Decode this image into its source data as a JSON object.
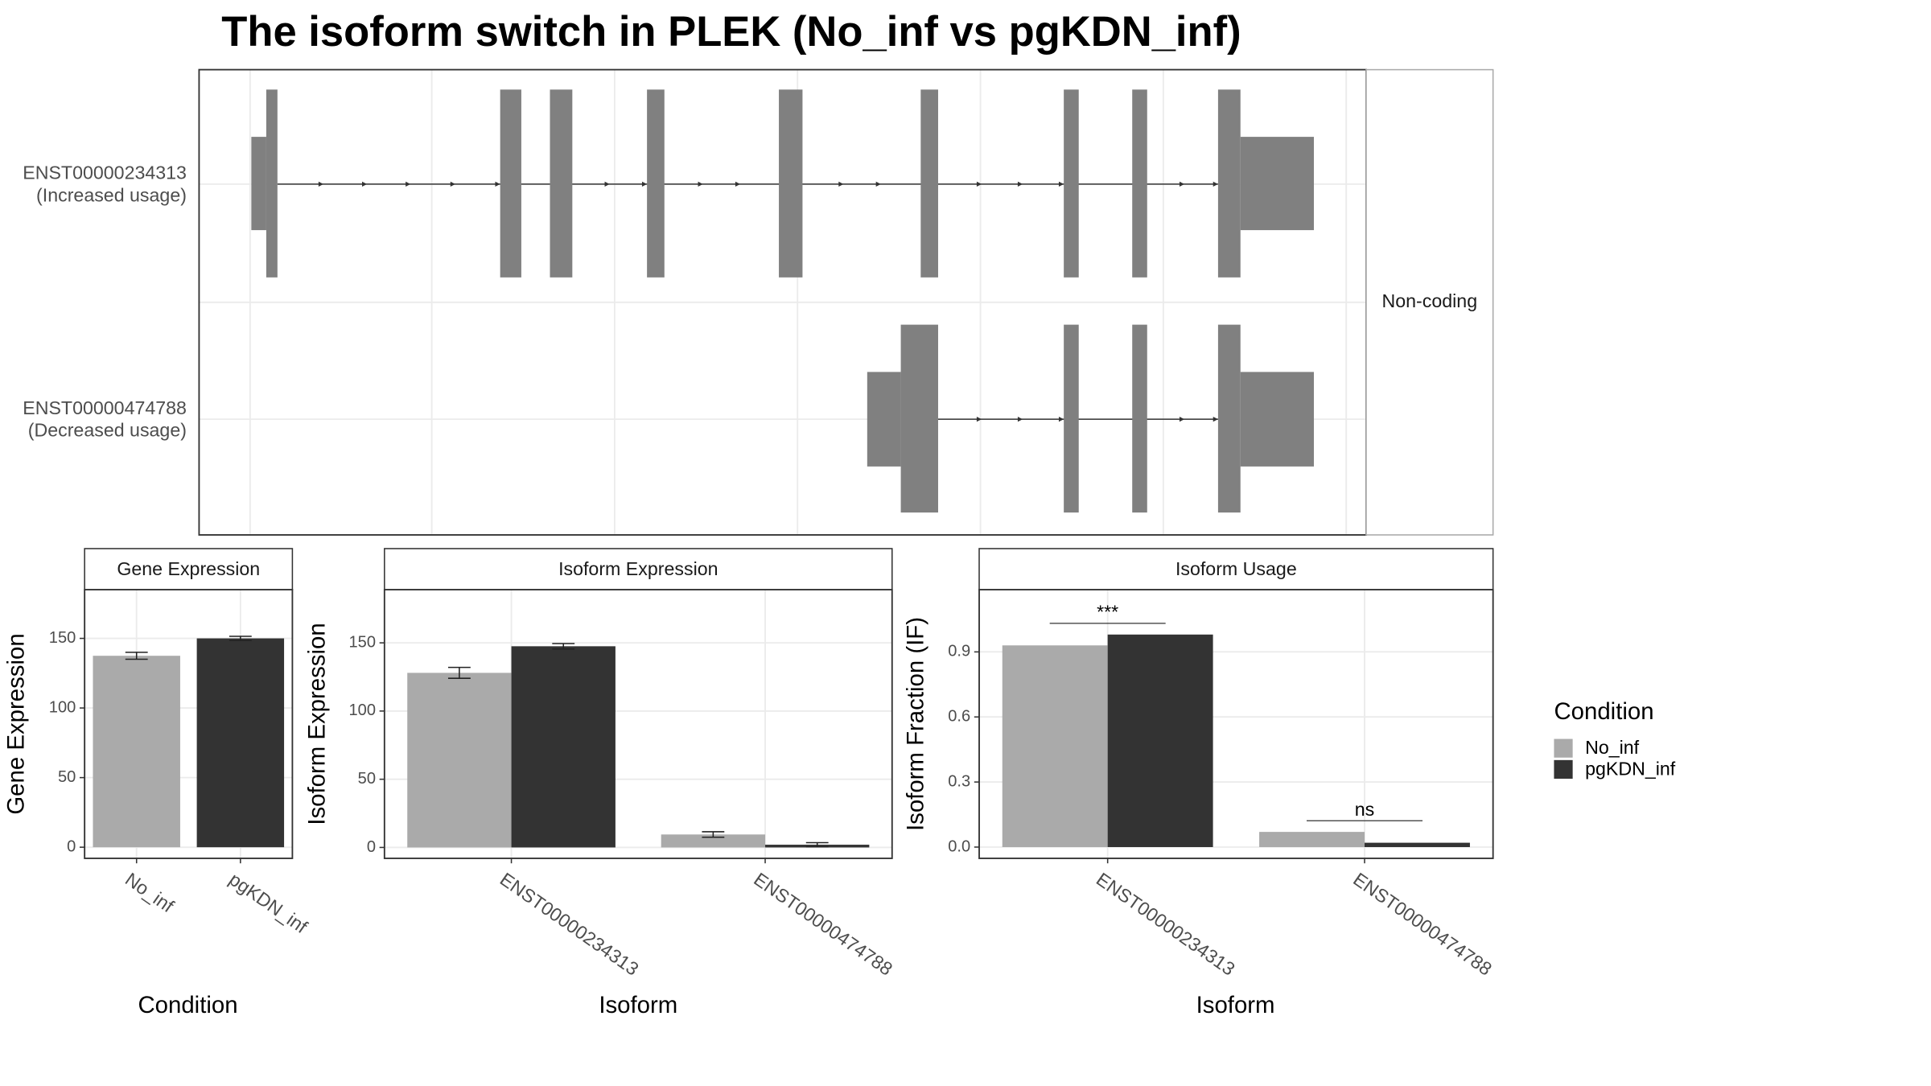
{
  "title": "The isoform switch in PLEK (No_inf vs pgKDN_inf)",
  "legend_title": "Condition",
  "chart_data": [
    {
      "type": "transcripts",
      "facet_label": "Non-coding",
      "transcripts": [
        {
          "id": "ENST00000234313",
          "usage": "(Increased usage)"
        },
        {
          "id": "ENST00000474788",
          "usage": "(Decreased usage)"
        }
      ]
    },
    {
      "type": "bar",
      "title": "Gene Expression",
      "x_label": "Condition",
      "y_label": "Gene Expression",
      "categories": [
        "No_inf",
        "pgKDN_inf"
      ],
      "values": [
        137.5,
        150
      ],
      "errors": [
        2.5,
        1.5
      ],
      "colors": [
        "#aaaaaa",
        "#333333"
      ],
      "ylim": [
        -8,
        185
      ],
      "yticks": [
        0,
        50,
        100,
        150
      ],
      "grid": true
    },
    {
      "type": "bar",
      "title": "Isoform Expression",
      "x_label": "Isoform",
      "y_label": "Isoform Expression",
      "categories": [
        "ENST00000234313",
        "ENST00000474788"
      ],
      "series": [
        {
          "name": "No_inf",
          "color": "#aaaaaa",
          "values": [
            128,
            9.5
          ],
          "errors": [
            4,
            2
          ]
        },
        {
          "name": "pgKDN_inf",
          "color": "#333333",
          "values": [
            147.5,
            2
          ],
          "errors": [
            2,
            1.5
          ]
        }
      ],
      "ylim": [
        -8,
        189
      ],
      "yticks": [
        0,
        50,
        100,
        150
      ],
      "grid": true
    },
    {
      "type": "bar",
      "title": "Isoform Usage",
      "x_label": "Isoform",
      "y_label": "Isoform Fraction (IF)",
      "categories": [
        "ENST00000234313",
        "ENST00000474788"
      ],
      "series": [
        {
          "name": "No_inf",
          "color": "#aaaaaa",
          "values": [
            0.93,
            0.07
          ]
        },
        {
          "name": "pgKDN_inf",
          "color": "#333333",
          "values": [
            0.98,
            0.02
          ]
        }
      ],
      "annotations": [
        "***",
        "ns"
      ],
      "ylim": [
        -0.052,
        1.187
      ],
      "yticks": [
        {
          "value": 0,
          "label": "0.0"
        },
        0.3,
        0.6,
        0.9
      ],
      "grid": true
    }
  ]
}
